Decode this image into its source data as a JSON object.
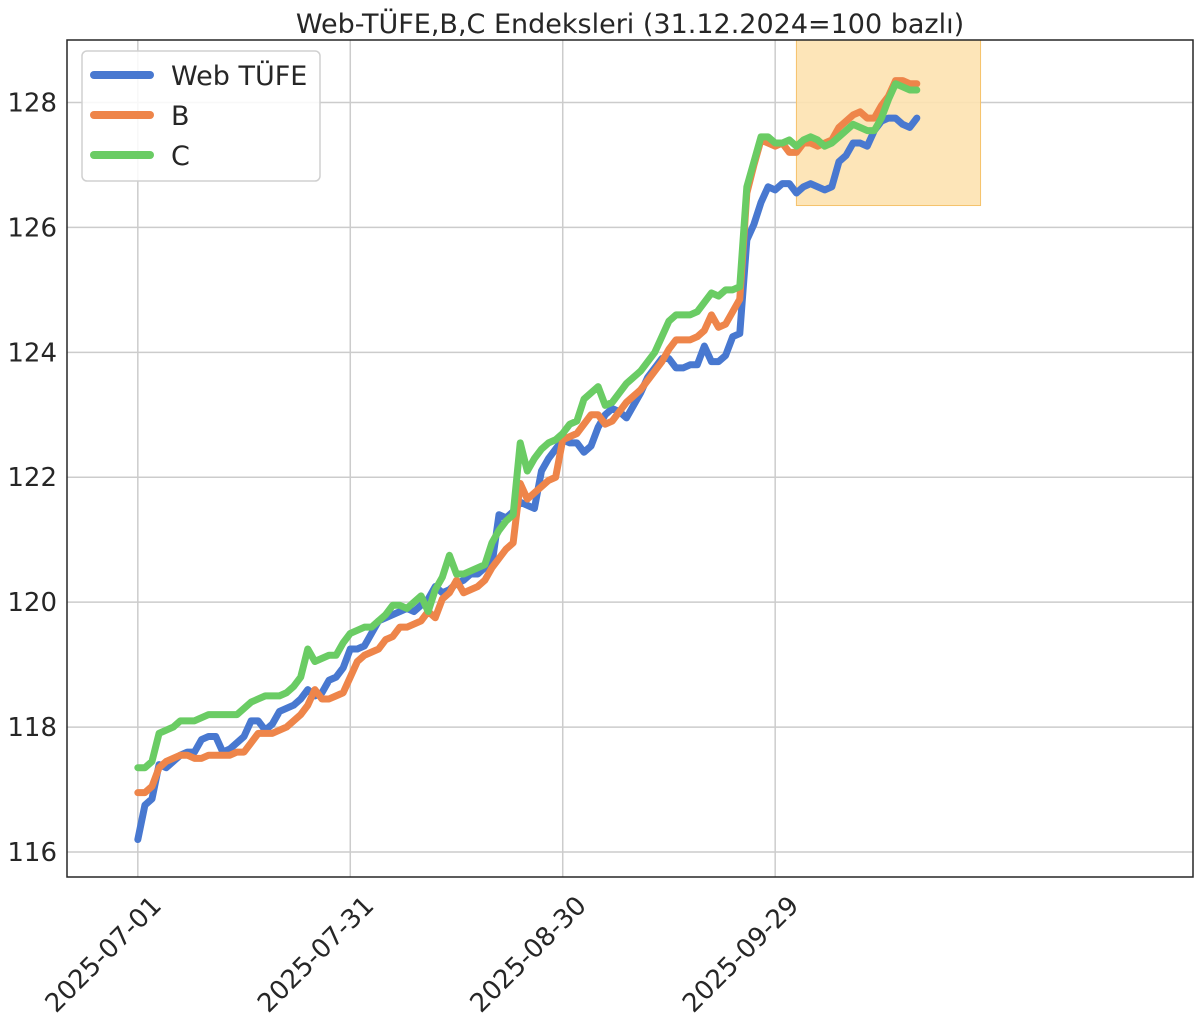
{
  "chart_data": {
    "type": "line",
    "title": "Web-TÜFE,B,C Endeksleri (31.12.2024=100 bazlı)",
    "xlabel": "",
    "ylabel": "",
    "start_date": "2025-07-01",
    "x_ticks": [
      "2025-07-01",
      "2025-07-31",
      "2025-08-30",
      "2025-09-29"
    ],
    "y_ticks": [
      "116",
      "118",
      "120",
      "122",
      "124",
      "126",
      "128"
    ],
    "ylim": [
      115.6,
      129.0
    ],
    "xlim": [
      "2025-06-21",
      "2025-11-27"
    ],
    "grid": true,
    "legend_position": "top-left",
    "highlight": {
      "x_from": "2025-10-02",
      "x_to": "2025-10-28",
      "y_from": 126.35,
      "y_to": 129.0,
      "color": "#fde2b0"
    },
    "series": [
      {
        "name": "Web TÜFE",
        "color": "#4878d0",
        "values": [
          116.2,
          116.75,
          116.85,
          117.4,
          117.35,
          117.45,
          117.55,
          117.6,
          117.6,
          117.8,
          117.85,
          117.85,
          117.6,
          117.65,
          117.75,
          117.85,
          118.1,
          118.1,
          117.95,
          118.05,
          118.25,
          118.3,
          118.35,
          118.45,
          118.6,
          118.5,
          118.55,
          118.75,
          118.8,
          118.95,
          119.25,
          119.25,
          119.3,
          119.5,
          119.7,
          119.75,
          119.8,
          119.85,
          119.9,
          119.85,
          119.95,
          120.05,
          120.25,
          120.15,
          120.2,
          120.3,
          120.35,
          120.45,
          120.45,
          120.55,
          120.6,
          121.4,
          121.35,
          121.45,
          121.6,
          121.55,
          121.5,
          122.1,
          122.3,
          122.45,
          122.6,
          122.55,
          122.55,
          122.4,
          122.5,
          122.8,
          123.0,
          123.1,
          123.05,
          122.95,
          123.15,
          123.35,
          123.6,
          123.75,
          123.9,
          123.9,
          123.75,
          123.75,
          123.8,
          123.8,
          124.1,
          123.85,
          123.85,
          123.95,
          124.25,
          124.3,
          125.8,
          126.05,
          126.4,
          126.65,
          126.6,
          126.7,
          126.7,
          126.55,
          126.65,
          126.7,
          126.65,
          126.6,
          126.65,
          127.05,
          127.15,
          127.35,
          127.35,
          127.3,
          127.55,
          127.7,
          127.75,
          127.75,
          127.65,
          127.6,
          127.75
        ],
        "style": "solid"
      },
      {
        "name": "B",
        "color": "#ee854a",
        "values": [
          116.95,
          116.95,
          117.05,
          117.35,
          117.45,
          117.5,
          117.55,
          117.55,
          117.5,
          117.5,
          117.55,
          117.55,
          117.55,
          117.55,
          117.6,
          117.6,
          117.75,
          117.9,
          117.9,
          117.9,
          117.95,
          118.0,
          118.1,
          118.2,
          118.35,
          118.6,
          118.45,
          118.45,
          118.5,
          118.55,
          118.8,
          119.05,
          119.15,
          119.2,
          119.25,
          119.4,
          119.45,
          119.6,
          119.6,
          119.65,
          119.7,
          119.85,
          119.75,
          120.05,
          120.15,
          120.35,
          120.15,
          120.2,
          120.25,
          120.35,
          120.55,
          120.7,
          120.85,
          120.95,
          121.9,
          121.65,
          121.75,
          121.85,
          121.95,
          122.0,
          122.6,
          122.65,
          122.7,
          122.85,
          123.0,
          123.0,
          122.85,
          122.9,
          123.05,
          123.2,
          123.3,
          123.4,
          123.55,
          123.7,
          123.85,
          124.05,
          124.2,
          124.2,
          124.2,
          124.25,
          124.35,
          124.6,
          124.4,
          124.45,
          124.65,
          124.85,
          126.55,
          127.0,
          127.4,
          127.35,
          127.3,
          127.35,
          127.2,
          127.2,
          127.35,
          127.35,
          127.3,
          127.35,
          127.4,
          127.6,
          127.7,
          127.8,
          127.85,
          127.75,
          127.75,
          127.95,
          128.1,
          128.35,
          128.35,
          128.3,
          128.3
        ],
        "style": "solid"
      },
      {
        "name": "C",
        "color": "#6acc64",
        "values": [
          117.35,
          117.35,
          117.45,
          117.9,
          117.95,
          118.0,
          118.1,
          118.1,
          118.1,
          118.15,
          118.2,
          118.2,
          118.2,
          118.2,
          118.2,
          118.3,
          118.4,
          118.45,
          118.5,
          118.5,
          118.5,
          118.55,
          118.65,
          118.8,
          119.25,
          119.05,
          119.1,
          119.15,
          119.15,
          119.35,
          119.5,
          119.55,
          119.6,
          119.6,
          119.7,
          119.8,
          119.95,
          119.95,
          119.9,
          120.0,
          120.1,
          119.85,
          120.2,
          120.4,
          120.75,
          120.45,
          120.45,
          120.5,
          120.55,
          120.6,
          120.95,
          121.15,
          121.3,
          121.4,
          122.55,
          122.1,
          122.3,
          122.45,
          122.55,
          122.6,
          122.7,
          122.85,
          122.9,
          123.25,
          123.35,
          123.45,
          123.15,
          123.2,
          123.35,
          123.5,
          123.6,
          123.7,
          123.85,
          124.0,
          124.25,
          124.5,
          124.6,
          124.6,
          124.6,
          124.65,
          124.8,
          124.95,
          124.9,
          125.0,
          125.0,
          125.05,
          126.65,
          127.05,
          127.45,
          127.45,
          127.35,
          127.35,
          127.4,
          127.3,
          127.4,
          127.45,
          127.4,
          127.3,
          127.35,
          127.45,
          127.55,
          127.65,
          127.6,
          127.55,
          127.55,
          127.75,
          128.05,
          128.3,
          128.25,
          128.2,
          128.2
        ],
        "style": "solid"
      }
    ]
  }
}
